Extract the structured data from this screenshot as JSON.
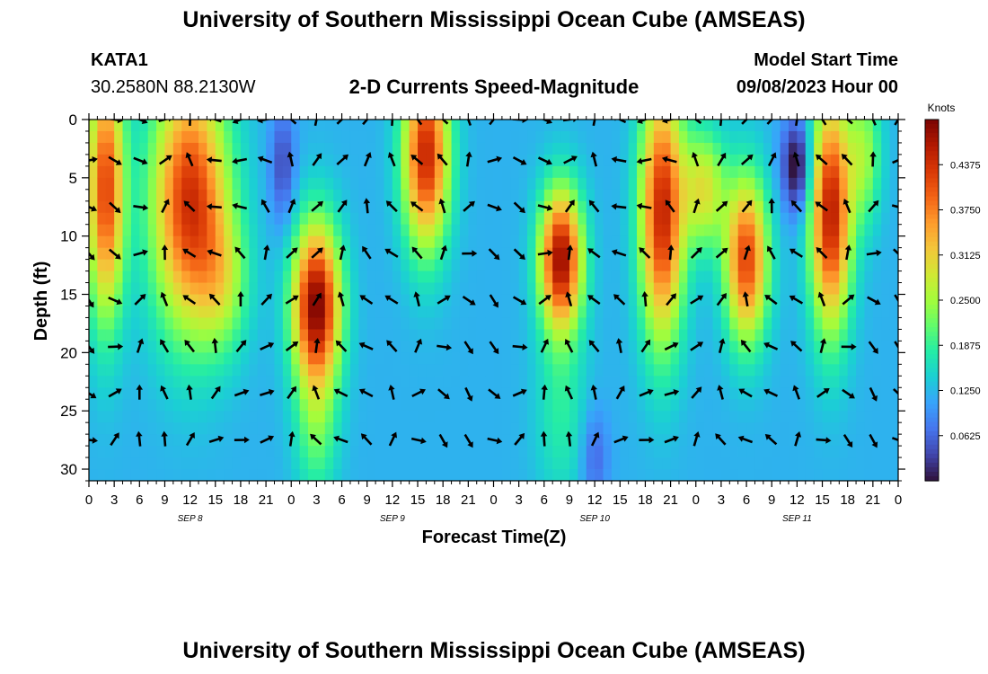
{
  "header": {
    "title": "University of Southern Mississippi Ocean Cube (AMSEAS)",
    "station": "KATA1",
    "coords": "30.2580N  88.2130W",
    "model_start_label": "Model Start Time",
    "model_start_value": "09/08/2023 Hour 00"
  },
  "footer": {
    "title": "University of Southern Mississippi Ocean Cube (AMSEAS)"
  },
  "chart_data": {
    "type": "heatmap",
    "title": "2-D Currents Speed-Magnitude",
    "xlabel": "Forecast Time(Z)",
    "ylabel": "Depth (ft)",
    "x_range_hours": [
      0,
      96
    ],
    "y_range_ft": [
      0,
      31
    ],
    "x_tick_labels": [
      "0",
      "3",
      "6",
      "9",
      "12",
      "15",
      "18",
      "21",
      "0",
      "3",
      "6",
      "9",
      "12",
      "15",
      "18",
      "21",
      "0",
      "3",
      "6",
      "9",
      "12",
      "15",
      "18",
      "21",
      "0",
      "3",
      "6",
      "9",
      "12",
      "15",
      "18",
      "21",
      "0"
    ],
    "y_ticks": [
      0,
      5,
      10,
      15,
      20,
      25,
      30
    ],
    "day_labels": [
      {
        "label": "SEP 8",
        "hour": 12
      },
      {
        "label": "SEP 9",
        "hour": 36
      },
      {
        "label": "SEP 10",
        "hour": 60
      },
      {
        "label": "SEP 11",
        "hour": 84
      }
    ],
    "colorbar": {
      "label": "Knots",
      "range": [
        0,
        0.5
      ],
      "ticks": [
        "0.0625",
        "0.1250",
        "0.1875",
        "0.2500",
        "0.3125",
        "0.3750",
        "0.4375"
      ],
      "tick_values": [
        0.0625,
        0.125,
        0.1875,
        0.25,
        0.3125,
        0.375,
        0.4375
      ],
      "colors": [
        "#30123b",
        "#4145ab",
        "#4675ed",
        "#39a2fc",
        "#1bcfd4",
        "#24eca6",
        "#61fc6c",
        "#a4fc3b",
        "#d1e834",
        "#f3c63a",
        "#fe9b2d",
        "#f36315",
        "#d93806",
        "#b11901",
        "#7a0403"
      ]
    },
    "speed_blobs": [
      {
        "t": 2,
        "d": 6,
        "st": 2.2,
        "sd": 11,
        "a": 0.3
      },
      {
        "t": 12,
        "d": 7,
        "st": 4.5,
        "sd": 11,
        "a": 0.32
      },
      {
        "t": 16,
        "d": 14,
        "st": 3,
        "sd": 6,
        "a": 0.1
      },
      {
        "t": 27,
        "d": 16,
        "st": 2.8,
        "sd": 7,
        "a": 0.38
      },
      {
        "t": 27,
        "d": 27,
        "st": 2.5,
        "sd": 6,
        "a": 0.08
      },
      {
        "t": 40,
        "d": 3,
        "st": 2.7,
        "sd": 8,
        "a": 0.33
      },
      {
        "t": 56,
        "d": 12,
        "st": 2.5,
        "sd": 6,
        "a": 0.36
      },
      {
        "t": 56,
        "d": 25,
        "st": 3,
        "sd": 8,
        "a": 0.06
      },
      {
        "t": 68,
        "d": 8,
        "st": 2.6,
        "sd": 11,
        "a": 0.33
      },
      {
        "t": 73,
        "d": 6,
        "st": 2.5,
        "sd": 5,
        "a": 0.17
      },
      {
        "t": 78,
        "d": 12,
        "st": 2.5,
        "sd": 7,
        "a": 0.3
      },
      {
        "t": 88,
        "d": 8,
        "st": 2.4,
        "sd": 10,
        "a": 0.34
      },
      {
        "t": 92,
        "d": 3,
        "st": 2,
        "sd": 6,
        "a": 0.12
      }
    ],
    "speed_dips": [
      {
        "t": 84,
        "d": 4,
        "st": 1.8,
        "sd": 4,
        "a": 0.14
      },
      {
        "t": 60,
        "d": 29,
        "st": 1.6,
        "sd": 4,
        "a": 0.06
      },
      {
        "t": 23,
        "d": 4,
        "st": 1.5,
        "sd": 5,
        "a": 0.08
      }
    ],
    "speed_base": 0.12,
    "arrow_grid": {
      "hours": [
        0,
        3,
        6,
        9,
        12,
        15,
        18,
        21,
        24,
        27,
        30,
        33,
        36,
        39,
        42,
        45,
        48,
        51,
        54,
        57,
        60,
        63,
        66,
        69,
        72,
        75,
        78,
        81,
        84,
        87,
        90,
        93,
        96
      ],
      "depths": [
        0,
        3.5,
        7.5,
        11.5,
        15.5,
        19.5,
        23.5,
        27.5
      ]
    }
  }
}
